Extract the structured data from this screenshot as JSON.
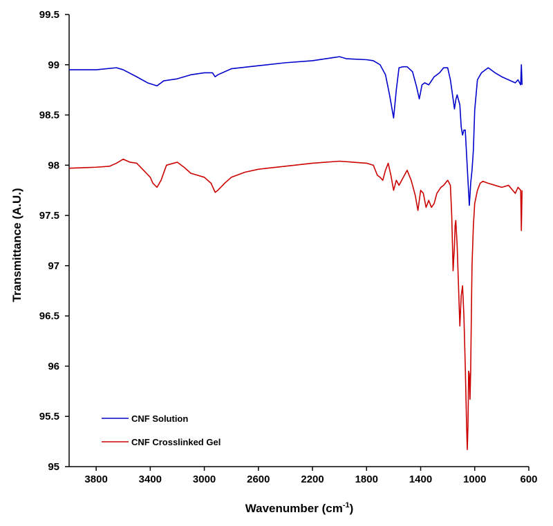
{
  "chart_data": {
    "type": "line",
    "title": "",
    "xlabel": "Wavenumber (cm",
    "xlabel_sup": "-1",
    "xlabel_close": ")",
    "ylabel": "Transmittance (A.U.)",
    "xlim": [
      4000,
      600
    ],
    "x_reversed": true,
    "ylim": [
      95,
      99.5
    ],
    "x_ticks": [
      3800,
      3400,
      3000,
      2600,
      2200,
      1800,
      1400,
      1000,
      600
    ],
    "x_tick_labels": [
      "3800",
      "3400",
      "3000",
      "2600",
      "2200",
      "1800",
      "1400",
      "1000",
      "600"
    ],
    "y_ticks": [
      95,
      95.5,
      96,
      96.5,
      97,
      97.5,
      98,
      98.5,
      99,
      99.5
    ],
    "y_tick_labels": [
      "95",
      "95.5",
      "96",
      "96.5",
      "97",
      "97.5",
      "98",
      "98.5",
      "99",
      "99.5"
    ],
    "grid": false,
    "legend_position": "bottom-left",
    "series": [
      {
        "name": "CNF Solution",
        "color": "#0000cc",
        "x": [
          4000,
          3800,
          3650,
          3600,
          3500,
          3420,
          3350,
          3300,
          3200,
          3100,
          3000,
          2940,
          2920,
          2900,
          2800,
          2600,
          2400,
          2200,
          2050,
          2000,
          1950,
          1800,
          1750,
          1700,
          1660,
          1630,
          1600,
          1580,
          1560,
          1530,
          1500,
          1460,
          1430,
          1410,
          1390,
          1370,
          1340,
          1300,
          1260,
          1230,
          1200,
          1180,
          1160,
          1150,
          1140,
          1130,
          1110,
          1100,
          1090,
          1080,
          1070,
          1060,
          1050,
          1040,
          1035,
          1030,
          1020,
          1010,
          1000,
          980,
          950,
          900,
          850,
          800,
          750,
          700,
          680,
          660,
          655,
          650
        ],
        "y": [
          98.95,
          98.95,
          98.97,
          98.95,
          98.88,
          98.82,
          98.79,
          98.84,
          98.86,
          98.9,
          98.92,
          98.92,
          98.88,
          98.9,
          98.96,
          98.99,
          99.02,
          99.04,
          99.07,
          99.08,
          99.06,
          99.05,
          99.04,
          99.0,
          98.9,
          98.7,
          98.47,
          98.75,
          98.97,
          98.98,
          98.98,
          98.93,
          98.78,
          98.66,
          98.8,
          98.82,
          98.8,
          98.88,
          98.92,
          98.97,
          98.97,
          98.85,
          98.66,
          98.56,
          98.65,
          98.7,
          98.6,
          98.38,
          98.3,
          98.35,
          98.35,
          98.1,
          97.85,
          97.6,
          97.7,
          97.82,
          97.95,
          98.15,
          98.55,
          98.85,
          98.92,
          98.97,
          98.92,
          98.88,
          98.85,
          98.82,
          98.85,
          98.8,
          99.0,
          98.8
        ]
      },
      {
        "name": "CNF Crosslinked Gel",
        "color": "#cc0000",
        "x": [
          4000,
          3800,
          3700,
          3650,
          3600,
          3550,
          3500,
          3450,
          3400,
          3380,
          3350,
          3320,
          3280,
          3200,
          3150,
          3100,
          3000,
          2950,
          2920,
          2900,
          2850,
          2800,
          2700,
          2600,
          2400,
          2200,
          2000,
          1800,
          1750,
          1720,
          1700,
          1680,
          1660,
          1640,
          1620,
          1600,
          1580,
          1560,
          1520,
          1500,
          1470,
          1440,
          1420,
          1400,
          1380,
          1360,
          1340,
          1320,
          1300,
          1280,
          1250,
          1230,
          1200,
          1180,
          1170,
          1160,
          1150,
          1145,
          1140,
          1130,
          1120,
          1110,
          1100,
          1090,
          1080,
          1070,
          1060,
          1055,
          1050,
          1045,
          1040,
          1035,
          1030,
          1025,
          1020,
          1010,
          1000,
          980,
          960,
          940,
          920,
          900,
          850,
          800,
          750,
          700,
          680,
          660,
          655,
          650
        ],
        "y": [
          97.97,
          97.98,
          97.99,
          98.02,
          98.06,
          98.03,
          98.02,
          97.95,
          97.88,
          97.82,
          97.78,
          97.85,
          98.0,
          98.03,
          97.98,
          97.92,
          97.88,
          97.82,
          97.73,
          97.75,
          97.82,
          97.88,
          97.93,
          97.96,
          97.99,
          98.02,
          98.04,
          98.02,
          98.0,
          97.9,
          97.88,
          97.85,
          97.95,
          98.02,
          97.9,
          97.75,
          97.85,
          97.8,
          97.9,
          97.95,
          97.85,
          97.7,
          97.55,
          97.75,
          97.72,
          97.58,
          97.65,
          97.58,
          97.62,
          97.72,
          97.78,
          97.8,
          97.85,
          97.8,
          97.5,
          96.95,
          97.2,
          97.4,
          97.45,
          97.2,
          96.8,
          96.4,
          96.7,
          96.8,
          96.5,
          96.0,
          95.4,
          95.17,
          95.4,
          95.95,
          95.92,
          95.67,
          95.95,
          96.5,
          97.0,
          97.4,
          97.62,
          97.75,
          97.82,
          97.84,
          97.83,
          97.82,
          97.8,
          97.78,
          97.8,
          97.72,
          97.78,
          97.75,
          97.35,
          97.75
        ]
      }
    ]
  }
}
